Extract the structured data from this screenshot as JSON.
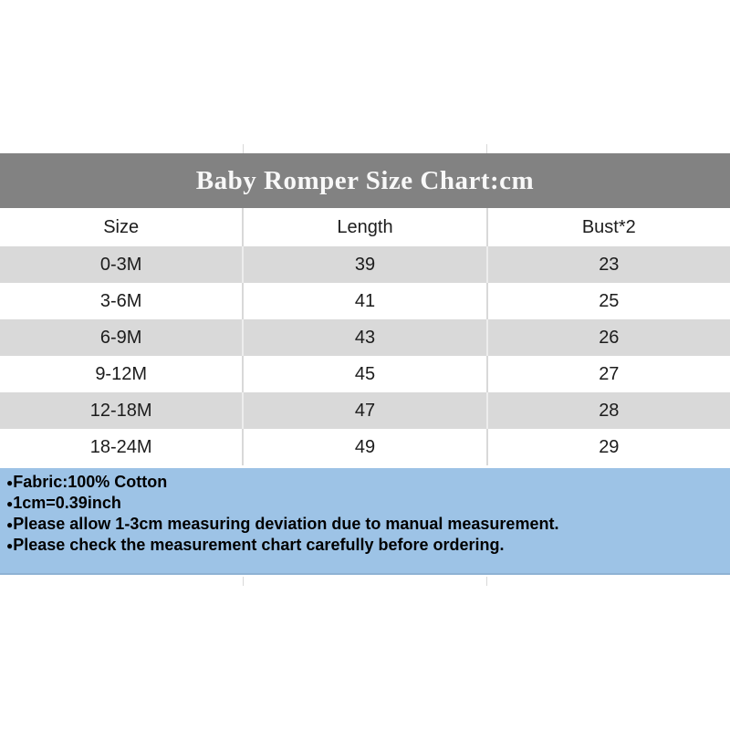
{
  "chart_data": {
    "type": "table",
    "title": "Baby Romper Size Chart:cm",
    "units": "cm",
    "columns": [
      "Size",
      "Length",
      "Bust*2"
    ],
    "rows": [
      [
        "0-3M",
        "39",
        "23"
      ],
      [
        "3-6M",
        "41",
        "25"
      ],
      [
        "6-9M",
        "43",
        "26"
      ],
      [
        "9-12M",
        "45",
        "27"
      ],
      [
        "12-18M",
        "47",
        "28"
      ],
      [
        "18-24M",
        "49",
        "29"
      ]
    ]
  },
  "notes": {
    "bullet": "●",
    "items": [
      "Fabric:100% Cotton",
      "1cm=0.39inch",
      "Please allow 1-3cm measuring deviation due to manual measurement.",
      "Please check the measurement chart carefully before ordering."
    ]
  },
  "colors": {
    "title_bar_bg": "#828282",
    "title_text": "#f8f8f8",
    "row_alt_bg": "#d9d9d9",
    "row_bg": "#ffffff",
    "notes_bg": "#9dc3e6",
    "body_text": "#1c1c1c",
    "notes_text": "#000000"
  }
}
